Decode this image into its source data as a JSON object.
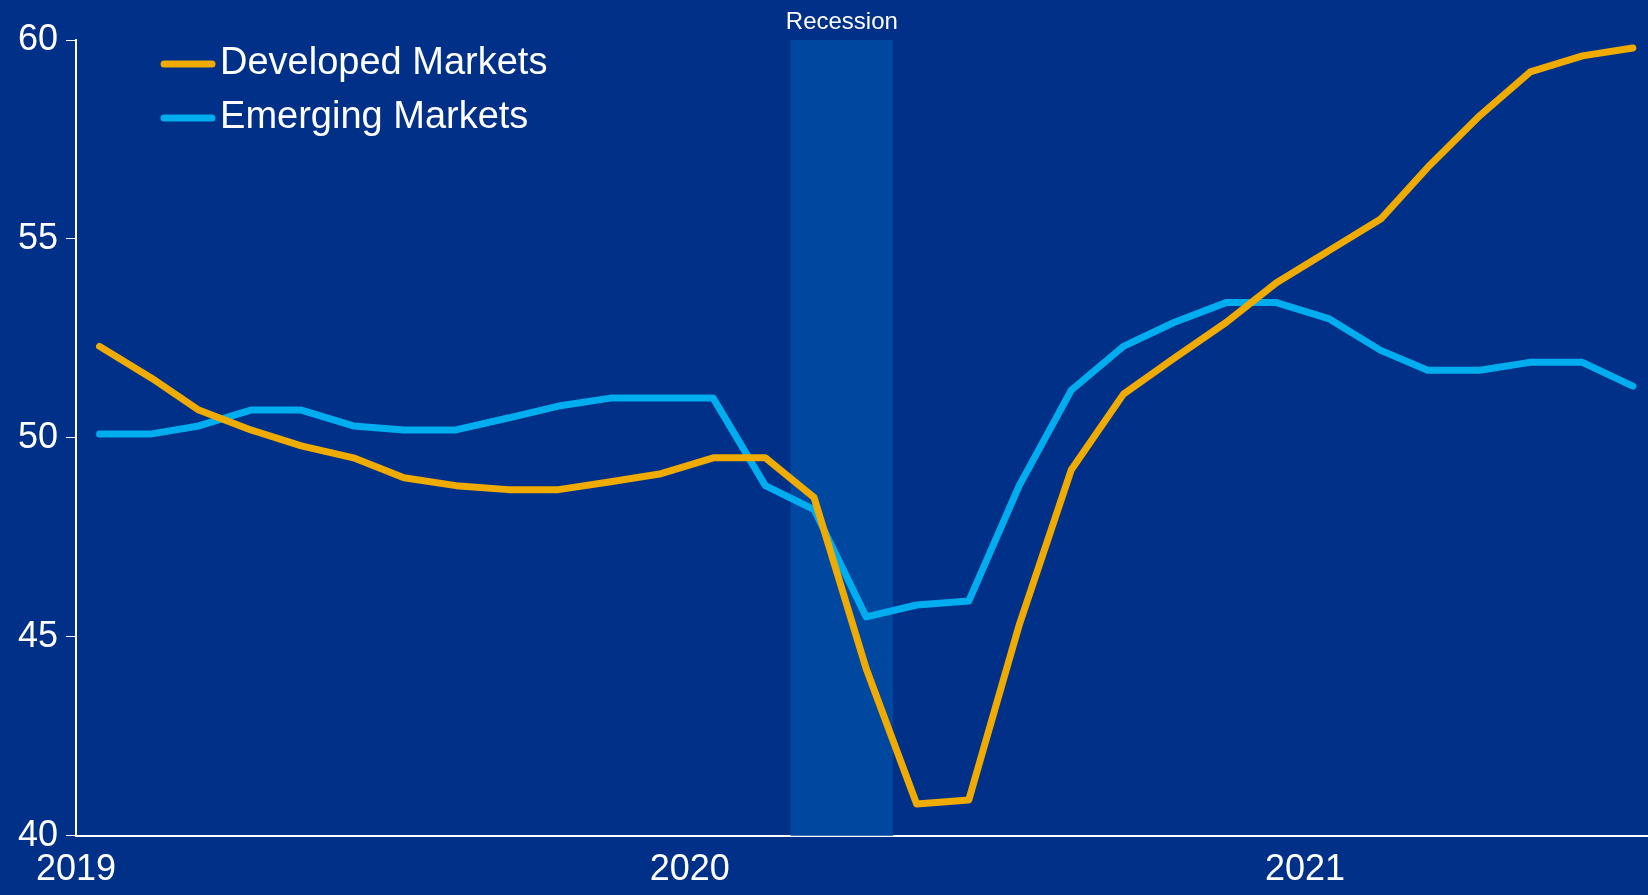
{
  "chart_data": {
    "type": "line",
    "x": [
      "2019-01-15",
      "2019-02-15",
      "2019-03-15",
      "2019-04-15",
      "2019-05-15",
      "2019-06-15",
      "2019-07-15",
      "2019-08-15",
      "2019-09-15",
      "2019-10-15",
      "2019-11-15",
      "2019-12-15",
      "2020-01-15",
      "2020-02-15",
      "2020-03-15",
      "2020-04-15",
      "2020-05-15",
      "2020-06-15",
      "2020-07-15",
      "2020-08-15",
      "2020-09-15",
      "2020-10-15",
      "2020-11-15",
      "2020-12-15",
      "2021-01-15",
      "2021-02-15",
      "2021-03-15",
      "2021-04-15",
      "2021-05-15",
      "2021-06-15",
      "2021-07-15"
    ],
    "series": [
      {
        "name": "Developed Markets",
        "color": "#f0ab00",
        "values": [
          52.3,
          51.5,
          50.7,
          50.2,
          49.8,
          49.5,
          49.0,
          48.8,
          48.7,
          48.7,
          48.9,
          49.1,
          49.5,
          49.5,
          48.5,
          44.2,
          40.8,
          40.9,
          45.3,
          49.2,
          51.1,
          52.0,
          52.9,
          53.9,
          54.7,
          55.5,
          56.8,
          58.1,
          59.2,
          59.6,
          59.8
        ]
      },
      {
        "name": "Emerging Markets",
        "color": "#00aeef",
        "values": [
          50.1,
          50.1,
          50.3,
          50.7,
          50.7,
          50.3,
          50.2,
          50.2,
          50.5,
          50.8,
          51.0,
          51.0,
          51.0,
          48.8,
          48.2,
          45.5,
          45.8,
          45.9,
          48.8,
          51.2,
          52.3,
          52.9,
          53.4,
          53.4,
          53.0,
          52.2,
          51.7,
          51.7,
          51.9,
          51.9,
          51.3
        ]
      }
    ],
    "xlim": [
      "2019-01-01",
      "2021-07-24"
    ],
    "xticks": [
      {
        "value": "2019-01-01",
        "label": "2019"
      },
      {
        "value": "2020-01-01",
        "label": "2020"
      },
      {
        "value": "2021-01-01",
        "label": "2021"
      }
    ],
    "ylim": [
      40,
      60
    ],
    "yticks": [
      40,
      45,
      50,
      55,
      60
    ],
    "bands": [
      {
        "axis": "x",
        "from": "2020-03-01",
        "to": "2020-05-01",
        "label": "Recession",
        "color": "#0047a0"
      }
    ],
    "grid": false,
    "legend": "top left",
    "marker": "none",
    "line_style": "solid"
  }
}
